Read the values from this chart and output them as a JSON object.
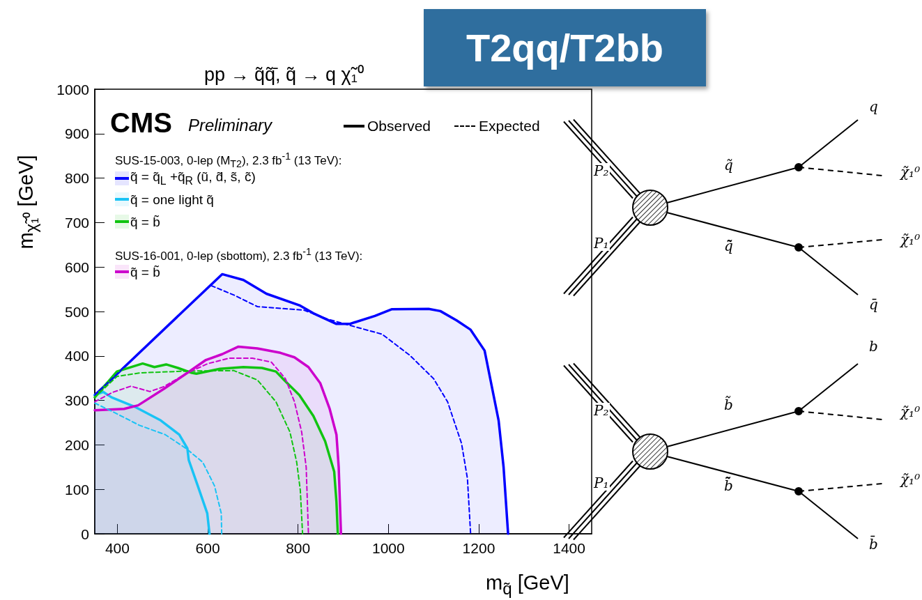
{
  "chart_data": {
    "type": "line",
    "title": "pp → q̃q̃̄, q̃ → q χ̃₁⁰",
    "subtitle": "T2qq/T2bb",
    "xlabel": "m$_{q̃}$ [GeV]",
    "ylabel": "m$_{χ̃₁⁰}$ [GeV]",
    "xlim": [
      350,
      1450
    ],
    "xticks": [
      400,
      600,
      800,
      1000,
      1200,
      1400
    ],
    "ylim": [
      0,
      1000
    ],
    "yticks": [
      0,
      100,
      200,
      300,
      400,
      500,
      600,
      700,
      800,
      900,
      1000
    ],
    "grid": false,
    "legend": "top left",
    "marker": "none",
    "series": [
      {
        "type": "area",
        "name": "q̃ = q̃$_{L}$ +q̃$_{R}$ (ũ, d̃, s̃, c̃)",
        "color": "#0000ff",
        "x": [
          350,
          632,
          679,
          730,
          803,
          834,
          885,
          914,
          970,
          1007,
          1089,
          1115,
          1151,
          1182,
          1213,
          1244,
          1255,
          1265
        ],
        "values": [
          312,
          584,
          571,
          540,
          514,
          496,
          472,
          472,
          490,
          505,
          506,
          501,
          480,
          459,
          412,
          255,
          150,
          0
        ]
      },
      {
        "type": "line",
        "line_style": "dashed",
        "color": "#0000ff",
        "x": [
          350,
          606,
          658,
          710,
          761,
          813,
          865,
          914,
          986,
          1048,
          1100,
          1131,
          1162,
          1175,
          1182
        ],
        "values": [
          312,
          559,
          537,
          511,
          507,
          503,
          483,
          469,
          449,
          401,
          349,
          297,
          203,
          124,
          0
        ]
      },
      {
        "type": "area",
        "name": "q̃ = one light q̃",
        "color": "#19c3f5",
        "x": [
          350,
          369,
          387,
          438,
          496,
          537,
          555,
          558,
          578,
          599,
          604
        ],
        "values": [
          312,
          319,
          307,
          286,
          255,
          223,
          192,
          166,
          108,
          46,
          0
        ]
      },
      {
        "type": "line",
        "line_style": "dashed",
        "color": "#19c3f5",
        "x": [
          350,
          387,
          449,
          506,
          552,
          589,
          615,
          630,
          631
        ],
        "values": [
          294,
          276,
          244,
          223,
          192,
          161,
          108,
          46,
          0
        ]
      },
      {
        "type": "area",
        "name": "q̃ = b̃",
        "color": "#11c411",
        "x": [
          350,
          399,
          456,
          482,
          508,
          534,
          565,
          575,
          627,
          679,
          720,
          751,
          771,
          803,
          834,
          860,
          880,
          885,
          888
        ],
        "values": [
          307,
          365,
          383,
          375,
          381,
          373,
          362,
          360,
          371,
          375,
          373,
          365,
          344,
          312,
          265,
          208,
          140,
          72,
          0
        ]
      },
      {
        "type": "line",
        "line_style": "dashed",
        "color": "#11c411",
        "x": [
          350,
          399,
          451,
          555,
          658,
          710,
          751,
          782,
          797,
          805,
          810
        ],
        "values": [
          307,
          354,
          362,
          366,
          367,
          346,
          297,
          229,
          161,
          98,
          0
        ]
      },
      {
        "type": "area",
        "name": "q̃ = b̃",
        "color": "#cc00cc",
        "x": [
          350,
          415,
          446,
          503,
          555,
          596,
          632,
          668,
          710,
          761,
          792,
          823,
          849,
          870,
          885,
          890,
          895
        ],
        "values": [
          278,
          281,
          289,
          326,
          362,
          391,
          404,
          421,
          417,
          407,
          397,
          375,
          339,
          281,
          223,
          150,
          0
        ]
      },
      {
        "type": "line",
        "line_style": "dashed",
        "color": "#cc00cc",
        "x": [
          350,
          389,
          430,
          472,
          503,
          555,
          601,
          648,
          699,
          741,
          772,
          792,
          808,
          818,
          823
        ],
        "values": [
          297,
          318,
          332,
          320,
          331,
          362,
          383,
          395,
          395,
          386,
          349,
          297,
          229,
          150,
          0
        ]
      }
    ],
    "annotations": [
      "CMS",
      "Preliminary",
      "Observed",
      "Expected",
      "SUS-15-003, 0-lep (M$_{T2}$), 2.3 fb$^{-1}$ (13 TeV):",
      "SUS-16-001, 0-lep (sbottom), 2.3 fb$^{-1}$ (13 TeV):",
      "P₂",
      "P₁",
      "q̃",
      "q̃̄",
      "q",
      "χ̃₁⁰",
      "χ̃₁⁰",
      "q̄",
      "P₂",
      "P₁",
      "b̃",
      "b̃̄",
      "b",
      "χ̃₁⁰",
      "χ̃₁⁰",
      "b̄"
    ]
  }
}
